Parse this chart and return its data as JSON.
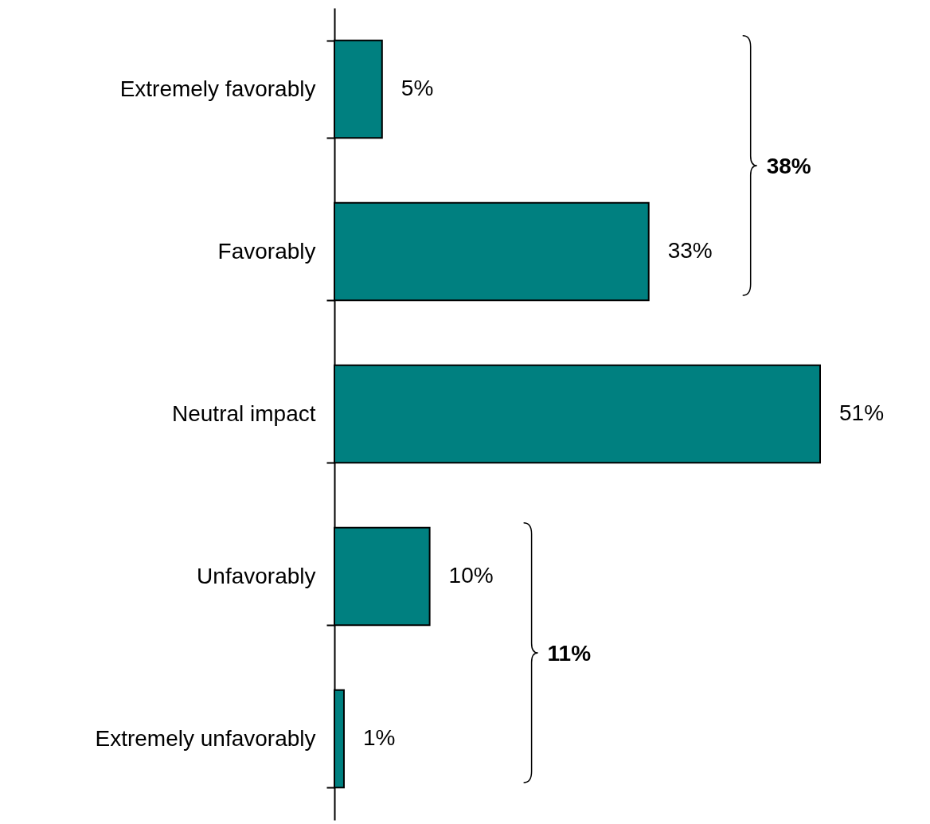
{
  "chart_data": {
    "type": "bar",
    "orientation": "horizontal",
    "categories": [
      "Extremely favorably",
      "Favorably",
      "Neutral impact",
      "Unfavorably",
      "Extremely unfavorably"
    ],
    "values": [
      5,
      33,
      51,
      10,
      1
    ],
    "value_labels": [
      "5%",
      "33%",
      "51%",
      "10%",
      "1%"
    ],
    "color": "#008080",
    "annotations": [
      "38%",
      "11%"
    ]
  }
}
